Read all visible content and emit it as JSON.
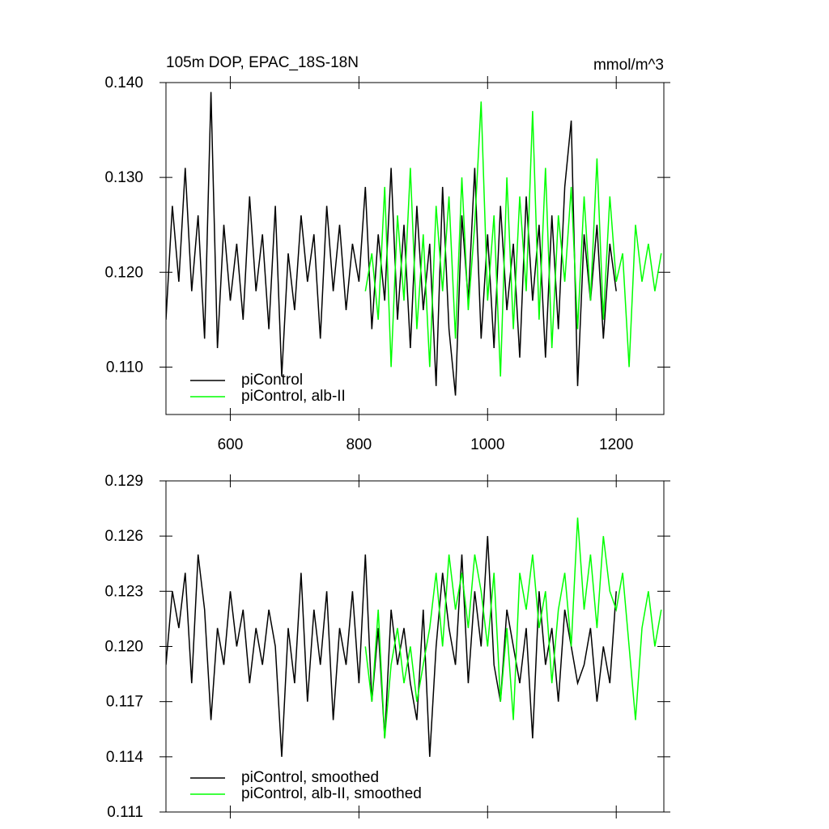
{
  "chart_data": [
    {
      "type": "line",
      "title": "105m DOP, EPAC_18S-18N",
      "units": "mmol/m^3",
      "xlim": [
        500,
        1274
      ],
      "ylim": [
        0.105,
        0.14
      ],
      "xticks": [
        600,
        800,
        1000,
        1200
      ],
      "show_xtick_labels": true,
      "yticks": [
        {
          "value": 0.14,
          "label": "0.140"
        },
        {
          "value": 0.13,
          "label": "0.130"
        },
        {
          "value": 0.12,
          "label": "0.120"
        },
        {
          "value": 0.11,
          "label": "0.110"
        }
      ],
      "legend": "lower left",
      "series": [
        {
          "name": "piControl",
          "color": "#000000",
          "x": [
            500,
            510,
            520,
            530,
            540,
            550,
            560,
            570,
            580,
            590,
            600,
            610,
            620,
            630,
            640,
            650,
            660,
            670,
            680,
            690,
            700,
            710,
            720,
            730,
            740,
            750,
            760,
            770,
            780,
            790,
            800,
            810,
            820,
            830,
            840,
            850,
            860,
            870,
            880,
            890,
            900,
            910,
            920,
            930,
            940,
            950,
            960,
            970,
            980,
            990,
            1000,
            1010,
            1020,
            1030,
            1040,
            1050,
            1060,
            1070,
            1080,
            1090,
            1100,
            1110,
            1120,
            1130,
            1140,
            1150,
            1160,
            1170,
            1180,
            1190,
            1200
          ],
          "values": [
            0.115,
            0.127,
            0.119,
            0.131,
            0.118,
            0.126,
            0.113,
            0.139,
            0.112,
            0.125,
            0.117,
            0.123,
            0.115,
            0.128,
            0.118,
            0.124,
            0.114,
            0.127,
            0.109,
            0.122,
            0.116,
            0.126,
            0.119,
            0.124,
            0.113,
            0.127,
            0.118,
            0.125,
            0.116,
            0.123,
            0.119,
            0.129,
            0.114,
            0.124,
            0.117,
            0.131,
            0.115,
            0.125,
            0.112,
            0.127,
            0.116,
            0.123,
            0.108,
            0.129,
            0.114,
            0.107,
            0.126,
            0.117,
            0.131,
            0.113,
            0.124,
            0.112,
            0.127,
            0.116,
            0.123,
            0.111,
            0.128,
            0.117,
            0.125,
            0.111,
            0.126,
            0.114,
            0.129,
            0.136,
            0.108,
            0.124,
            0.117,
            0.125,
            0.113,
            0.123,
            0.118
          ]
        },
        {
          "name": "piControl, alb-II",
          "color": "#00ff00",
          "x": [
            810,
            820,
            830,
            840,
            850,
            860,
            870,
            880,
            890,
            900,
            910,
            920,
            930,
            940,
            950,
            960,
            970,
            980,
            990,
            1000,
            1010,
            1020,
            1030,
            1040,
            1050,
            1060,
            1070,
            1080,
            1090,
            1100,
            1110,
            1120,
            1130,
            1140,
            1150,
            1160,
            1170,
            1180,
            1190,
            1200,
            1210,
            1220,
            1230,
            1240,
            1250,
            1260,
            1270
          ],
          "values": [
            0.118,
            0.122,
            0.115,
            0.129,
            0.11,
            0.126,
            0.117,
            0.131,
            0.114,
            0.124,
            0.11,
            0.127,
            0.118,
            0.128,
            0.113,
            0.13,
            0.116,
            0.125,
            0.138,
            0.117,
            0.126,
            0.109,
            0.13,
            0.114,
            0.128,
            0.118,
            0.137,
            0.115,
            0.131,
            0.112,
            0.126,
            0.119,
            0.129,
            0.114,
            0.128,
            0.117,
            0.132,
            0.115,
            0.128,
            0.119,
            0.122,
            0.11,
            0.125,
            0.119,
            0.123,
            0.118,
            0.122
          ]
        }
      ]
    },
    {
      "type": "line",
      "xlim": [
        500,
        1274
      ],
      "ylim": [
        0.111,
        0.129
      ],
      "xticks": [
        600,
        800,
        1000,
        1200
      ],
      "show_xtick_labels": false,
      "yticks": [
        0.129,
        0.126,
        0.123,
        {
          "value": 0.12,
          "label": "0.120"
        },
        0.117,
        0.114,
        0.111
      ],
      "legend": "lower left",
      "series": [
        {
          "name": "piControl, smoothed",
          "color": "#000000",
          "x": [
            500,
            510,
            520,
            530,
            540,
            550,
            560,
            570,
            580,
            590,
            600,
            610,
            620,
            630,
            640,
            650,
            660,
            670,
            680,
            690,
            700,
            710,
            720,
            730,
            740,
            750,
            760,
            770,
            780,
            790,
            800,
            810,
            820,
            830,
            840,
            850,
            860,
            870,
            880,
            890,
            900,
            910,
            920,
            930,
            940,
            950,
            960,
            970,
            980,
            990,
            1000,
            1010,
            1020,
            1030,
            1040,
            1050,
            1060,
            1070,
            1080,
            1090,
            1100,
            1110,
            1120,
            1130,
            1140,
            1150,
            1160,
            1170,
            1180,
            1190,
            1200
          ],
          "values": [
            0.119,
            0.123,
            0.121,
            0.124,
            0.118,
            0.125,
            0.122,
            0.116,
            0.121,
            0.119,
            0.123,
            0.12,
            0.122,
            0.118,
            0.121,
            0.119,
            0.122,
            0.12,
            0.114,
            0.121,
            0.118,
            0.124,
            0.117,
            0.122,
            0.119,
            0.123,
            0.116,
            0.121,
            0.119,
            0.123,
            0.118,
            0.125,
            0.117,
            0.121,
            0.115,
            0.122,
            0.119,
            0.121,
            0.118,
            0.116,
            0.122,
            0.114,
            0.12,
            0.124,
            0.121,
            0.119,
            0.125,
            0.118,
            0.123,
            0.12,
            0.126,
            0.119,
            0.117,
            0.122,
            0.12,
            0.118,
            0.121,
            0.115,
            0.123,
            0.119,
            0.121,
            0.117,
            0.122,
            0.12,
            0.118,
            0.119,
            0.121,
            0.117,
            0.12,
            0.118,
            0.123
          ]
        },
        {
          "name": "piControl, alb-II, smoothed",
          "color": "#00ff00",
          "x": [
            810,
            820,
            830,
            840,
            850,
            860,
            870,
            880,
            890,
            900,
            910,
            920,
            930,
            940,
            950,
            960,
            970,
            980,
            990,
            1000,
            1010,
            1020,
            1030,
            1040,
            1050,
            1060,
            1070,
            1080,
            1090,
            1100,
            1110,
            1120,
            1130,
            1140,
            1150,
            1160,
            1170,
            1180,
            1190,
            1200,
            1210,
            1220,
            1230,
            1240,
            1250,
            1260,
            1270
          ],
          "values": [
            0.12,
            0.117,
            0.122,
            0.115,
            0.119,
            0.121,
            0.118,
            0.12,
            0.117,
            0.119,
            0.121,
            0.124,
            0.12,
            0.125,
            0.122,
            0.124,
            0.121,
            0.125,
            0.123,
            0.12,
            0.124,
            0.117,
            0.121,
            0.116,
            0.124,
            0.122,
            0.125,
            0.121,
            0.123,
            0.118,
            0.122,
            0.124,
            0.12,
            0.127,
            0.122,
            0.125,
            0.121,
            0.126,
            0.123,
            0.122,
            0.124,
            0.12,
            0.116,
            0.121,
            0.123,
            0.12,
            0.122
          ]
        }
      ]
    }
  ]
}
